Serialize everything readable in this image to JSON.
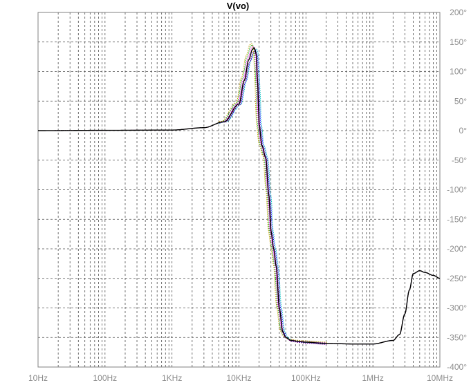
{
  "chart_data": {
    "type": "line",
    "title": "V(vo)",
    "xlabel": "",
    "ylabel": "",
    "x_scale": "log",
    "xlim": [
      "10Hz",
      "10MHz"
    ],
    "ylim": [
      -400,
      200
    ],
    "x_tick_labels": [
      "10Hz",
      "100Hz",
      "1KHz",
      "10KHz",
      "100KHz",
      "1MHz",
      "10MHz"
    ],
    "y_tick_labels": [
      "200°",
      "150°",
      "100°",
      "50°",
      "0°",
      "-50°",
      "-100°",
      "-150°",
      "-200°",
      "-250°",
      "-300°",
      "-350°",
      "-400°"
    ],
    "grid": true,
    "x_units": "Hz",
    "y_units": "degrees",
    "series_points_freq_hz": [
      10,
      100,
      1000,
      3000,
      6000,
      10000,
      12000,
      14000,
      16000,
      17000,
      18000,
      19000,
      20000,
      22000,
      25000,
      28000,
      30000,
      33000,
      36000,
      40000,
      45000,
      50000,
      60000,
      80000,
      100000,
      200000,
      500000,
      1000000,
      2000000,
      2500000,
      3000000,
      3500000,
      4000000,
      5000000,
      6000000,
      8000000,
      10000000
    ],
    "series_points_phase_deg": [
      0,
      0.5,
      1,
      5,
      15,
      45,
      85,
      120,
      138,
      140,
      132,
      80,
      10,
      -25,
      -45,
      -110,
      -170,
      -200,
      -230,
      -300,
      -340,
      -350,
      -355,
      -357,
      -358,
      -360,
      -361,
      -361,
      -355,
      -345,
      -310,
      -270,
      -242,
      -237,
      -240,
      -245,
      -250
    ],
    "series": [
      {
        "color": "#ff0000",
        "offset_deg": 0,
        "freq_shift": 1.0
      },
      {
        "color": "#00a000",
        "offset_deg": 6,
        "freq_shift": 0.94
      },
      {
        "color": "#0000ff",
        "offset_deg": -4,
        "freq_shift": 1.05
      },
      {
        "color": "#ff00ff",
        "offset_deg": 3,
        "freq_shift": 0.97
      },
      {
        "color": "#00c0c0",
        "offset_deg": -2,
        "freq_shift": 1.08
      },
      {
        "color": "#c8a000",
        "offset_deg": 8,
        "freq_shift": 0.91
      },
      {
        "color": "#800080",
        "offset_deg": -6,
        "freq_shift": 1.02
      },
      {
        "color": "#000000",
        "offset_deg": 0,
        "freq_shift": 1.0
      }
    ],
    "colors": {
      "grid": "#4d4d4d",
      "axis": "#808080",
      "tick_text": "#8c8c8c"
    }
  }
}
